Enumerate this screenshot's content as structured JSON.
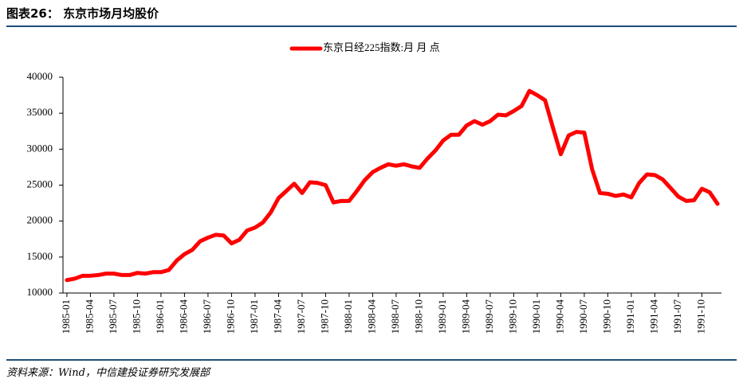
{
  "header": {
    "title": "图表26：  东京市场月均股价"
  },
  "footer": {
    "source": "资料来源：Wind，中信建投证券研究发展部"
  },
  "chart_data": {
    "type": "line",
    "categories": [
      "1985-01",
      null,
      null,
      "1985-04",
      null,
      null,
      "1985-07",
      null,
      null,
      "1985-10",
      null,
      null,
      "1986-01",
      null,
      null,
      "1986-04",
      null,
      null,
      "1986-07",
      null,
      null,
      "1986-10",
      null,
      null,
      "1987-01",
      null,
      null,
      "1987-04",
      null,
      null,
      "1987-07",
      null,
      null,
      "1987-10",
      null,
      null,
      "1988-01",
      null,
      null,
      "1988-04",
      null,
      null,
      "1988-07",
      null,
      null,
      "1988-10",
      null,
      null,
      "1989-01",
      null,
      null,
      "1989-04",
      null,
      null,
      "1989-07",
      null,
      null,
      "1989-10",
      null,
      null,
      "1990-01",
      null,
      null,
      "1990-04",
      null,
      null,
      "1990-07",
      null,
      null,
      "1990-10",
      null,
      null,
      "1991-01",
      null,
      null,
      "1991-04",
      null,
      null,
      "1991-07",
      null,
      null,
      "1991-10",
      null,
      null
    ],
    "series": [
      {
        "name": "东京日经225指数:月 月 点",
        "color": "#ff0000",
        "values": [
          11800,
          12000,
          12400,
          12400,
          12500,
          12700,
          12700,
          12500,
          12500,
          12800,
          12700,
          12900,
          12900,
          13200,
          14500,
          15400,
          16000,
          17200,
          17700,
          18100,
          18000,
          16900,
          17400,
          18700,
          19100,
          19800,
          21200,
          23200,
          24200,
          25200,
          23900,
          25400,
          25300,
          25000,
          22600,
          22800,
          22800,
          24200,
          25700,
          26800,
          27400,
          27900,
          27700,
          27900,
          27600,
          27400,
          28700,
          29800,
          31200,
          32000,
          32000,
          33300,
          33900,
          33400,
          33900,
          34800,
          34700,
          35300,
          36000,
          38100,
          37500,
          36800,
          33000,
          29300,
          31900,
          32400,
          32300,
          27200,
          23900,
          23800,
          23500,
          23700,
          23300,
          25300,
          26500,
          26400,
          25800,
          24600,
          23400,
          22800,
          22900,
          24500,
          24000,
          22400
        ]
      }
    ],
    "ylim": [
      10000,
      40000
    ],
    "yticks": [
      10000,
      15000,
      20000,
      25000,
      30000,
      35000,
      40000
    ],
    "legend": "top"
  }
}
